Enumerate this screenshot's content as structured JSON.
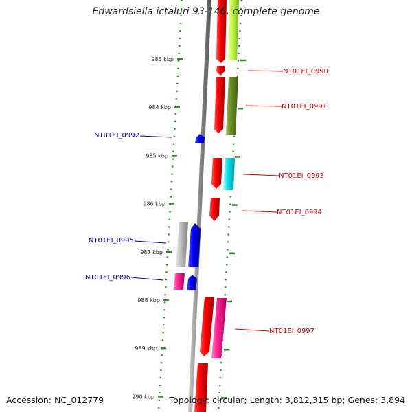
{
  "title": "Edwardsiella ictaluri 93-146, complete genome",
  "accession": "Accession: NC_012779",
  "summary": "Topology: circular; Length: 3,812,315 bp; Genes: 3,894",
  "ticks": [
    "983 kbp",
    "984 kbp",
    "985 kbp",
    "986 kbp",
    "987 kbp",
    "988 kbp",
    "989 kbp",
    "990 kbp"
  ],
  "genes": [
    {
      "name": "NT01EI_0990",
      "color": "#cc0000"
    },
    {
      "name": "NT01EI_0991",
      "color": "#cc0000"
    },
    {
      "name": "NT01EI_0992",
      "color": "#0000aa"
    },
    {
      "name": "NT01EI_0993",
      "color": "#cc0000"
    },
    {
      "name": "NT01EI_0994",
      "color": "#cc0000"
    },
    {
      "name": "NT01EI_0995",
      "color": "#0000aa"
    },
    {
      "name": "NT01EI_0996",
      "color": "#0000aa"
    },
    {
      "name": "NT01EI_0997",
      "color": "#cc0000"
    }
  ]
}
